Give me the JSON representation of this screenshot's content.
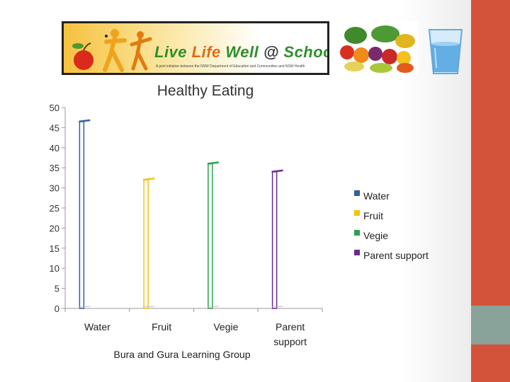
{
  "banner": {
    "title_prefix": "Live ",
    "title_life": "Life",
    "title_mid": " Well ",
    "title_at": "@",
    "title_suffix": " School",
    "subtitle": "A joint initiative between the NSW Department of Education and Communities and NSW Health"
  },
  "icons": [
    "apple-icon",
    "fruit-vegetables-icon",
    "water-glass-icon"
  ],
  "colors": {
    "Water": "#2e5fa3",
    "Fruit": "#f4c20d",
    "Vegie": "#2ba24c",
    "Parent support": "#6a2c91",
    "sidebar_accent": "#d3533a",
    "sidebar_block": "#8aa39a"
  },
  "chart_data": {
    "type": "bar",
    "title": "Healthy Eating",
    "xlabel": "Bura and Gura Learning Group",
    "ylabel": "",
    "categories": [
      "Water",
      "Fruit",
      "Vegie",
      "Parent support"
    ],
    "category_labels": [
      [
        "Water"
      ],
      [
        "Fruit"
      ],
      [
        "Vegie"
      ],
      [
        "Parent",
        "support"
      ]
    ],
    "values": [
      46.5,
      32,
      36,
      34
    ],
    "ylim": [
      0,
      50
    ],
    "yticks": [
      0,
      5,
      10,
      15,
      20,
      25,
      30,
      35,
      40,
      45,
      50
    ],
    "legend": [
      "Water",
      "Fruit",
      "Vegie",
      "Parent support"
    ],
    "legend_position": "right",
    "grid": false
  }
}
